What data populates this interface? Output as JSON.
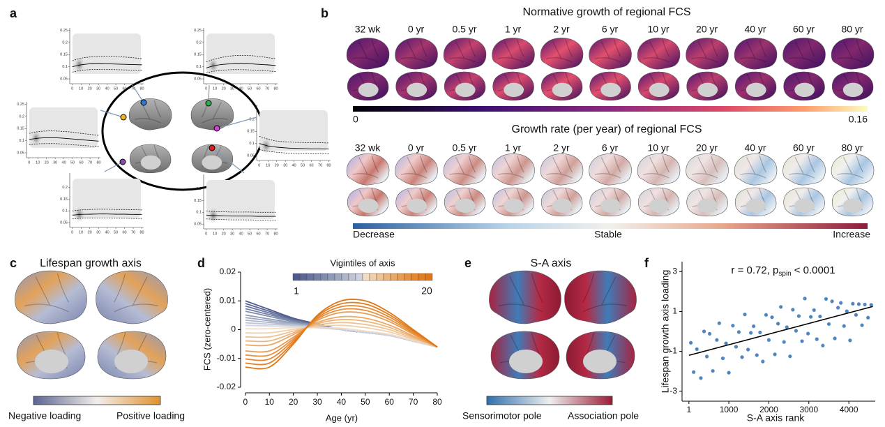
{
  "panels": {
    "a": {
      "label": "a",
      "ylim": [
        0.03,
        0.26
      ],
      "xlim": [
        -3,
        82
      ],
      "xticks": [
        0,
        10,
        20,
        30,
        40,
        50,
        60,
        70,
        80
      ],
      "plots": [
        {
          "yticks": [
            0.05,
            0.1,
            0.15,
            0.2,
            0.25
          ],
          "median": [
            0.1,
            0.108,
            0.112,
            0.113,
            0.112,
            0.111,
            0.11,
            0.109,
            0.108
          ],
          "upper": [
            0.125,
            0.135,
            0.14,
            0.142,
            0.143,
            0.142,
            0.14,
            0.137,
            0.133
          ],
          "lower": [
            0.078,
            0.085,
            0.088,
            0.089,
            0.089,
            0.088,
            0.087,
            0.086,
            0.085
          ]
        },
        {
          "yticks": [
            0.05,
            0.1,
            0.15,
            0.2,
            0.25
          ],
          "median": [
            0.095,
            0.105,
            0.11,
            0.112,
            0.113,
            0.112,
            0.11,
            0.108,
            0.105
          ],
          "upper": [
            0.12,
            0.132,
            0.14,
            0.145,
            0.147,
            0.146,
            0.143,
            0.138,
            0.133
          ],
          "lower": [
            0.075,
            0.082,
            0.086,
            0.088,
            0.088,
            0.087,
            0.085,
            0.083,
            0.08
          ]
        },
        {
          "yticks": [
            0.05,
            0.1,
            0.15,
            0.2,
            0.25
          ],
          "median": [
            0.105,
            0.11,
            0.112,
            0.112,
            0.11,
            0.107,
            0.104,
            0.101,
            0.098
          ],
          "upper": [
            0.13,
            0.137,
            0.14,
            0.14,
            0.138,
            0.135,
            0.13,
            0.126,
            0.122
          ],
          "lower": [
            0.083,
            0.087,
            0.088,
            0.088,
            0.086,
            0.083,
            0.081,
            0.078,
            0.076
          ]
        },
        {
          "yticks": [
            0.05,
            0.1,
            0.15,
            0.2
          ],
          "median": [
            0.1,
            0.09,
            0.085,
            0.082,
            0.08,
            0.079,
            0.078,
            0.078,
            0.077
          ],
          "upper": [
            0.13,
            0.118,
            0.11,
            0.107,
            0.105,
            0.104,
            0.103,
            0.103,
            0.102
          ],
          "lower": [
            0.075,
            0.068,
            0.064,
            0.061,
            0.06,
            0.059,
            0.058,
            0.058,
            0.057
          ]
        },
        {
          "yticks": [
            0.05,
            0.1,
            0.15,
            0.2
          ],
          "median": [
            0.082,
            0.085,
            0.086,
            0.087,
            0.087,
            0.086,
            0.086,
            0.085,
            0.085
          ],
          "upper": [
            0.1,
            0.104,
            0.106,
            0.107,
            0.107,
            0.106,
            0.106,
            0.105,
            0.104
          ],
          "lower": [
            0.066,
            0.069,
            0.07,
            0.07,
            0.07,
            0.069,
            0.069,
            0.068,
            0.068
          ]
        },
        {
          "yticks": [
            0.05,
            0.1,
            0.15,
            0.2
          ],
          "median": [
            0.088,
            0.086,
            0.085,
            0.084,
            0.084,
            0.084,
            0.083,
            0.083,
            0.083
          ],
          "upper": [
            0.105,
            0.103,
            0.102,
            0.101,
            0.101,
            0.101,
            0.1,
            0.1,
            0.1
          ],
          "lower": [
            0.072,
            0.07,
            0.069,
            0.068,
            0.068,
            0.068,
            0.067,
            0.067,
            0.067
          ]
        }
      ]
    },
    "b": {
      "label": "b",
      "title_top": "Normative growth of regional FCS",
      "title_bottom": "Growth rate (per year) of regional FCS",
      "ages": [
        "32 wk",
        "0 yr",
        "0.5 yr",
        "1 yr",
        "2 yr",
        "6 yr",
        "10 yr",
        "20 yr",
        "40 yr",
        "60 yr",
        "80 yr"
      ],
      "colorbar_top": {
        "min": "0",
        "max": "0.16"
      },
      "colorbar_bottom": {
        "left": "Decrease",
        "middle": "Stable",
        "right": "Increase"
      }
    },
    "c": {
      "label": "c",
      "title": "Lifespan growth axis",
      "colorbar": {
        "left": "Negative loading",
        "right": "Positive loading"
      }
    },
    "d": {
      "label": "d",
      "type": "line",
      "y_label": "FCS (zero-centered)",
      "x_label": "Age (yr)",
      "legend_title": "Vigintiles of axis",
      "legend_labels": [
        "1",
        "20"
      ],
      "x": [
        0,
        10,
        20,
        30,
        40,
        50,
        60,
        70,
        80
      ],
      "xlim": [
        -2,
        80
      ],
      "xticks": [
        0,
        10,
        20,
        30,
        40,
        50,
        60,
        70,
        80
      ],
      "ylim": [
        -0.02,
        0.02
      ],
      "yticks": [
        -0.02,
        -0.01,
        0,
        0.01,
        0.02
      ],
      "series": [
        {
          "color": "#4e5a8c",
          "values": [
            0.01,
            0.007,
            0.004,
            0.002,
            0,
            -0.001,
            -0.002,
            -0.004,
            -0.006
          ]
        },
        {
          "color": "#5a6694",
          "values": [
            0.0091,
            0.0064,
            0.0037,
            0.0019,
            0,
            -0.001,
            -0.002,
            -0.004,
            -0.006
          ]
        },
        {
          "color": "#67739c",
          "values": [
            0.0082,
            0.0058,
            0.0034,
            0.0017,
            0,
            -0.001,
            -0.002,
            -0.004,
            -0.006
          ]
        },
        {
          "color": "#7480a5",
          "values": [
            0.0073,
            0.0052,
            0.0031,
            0.0016,
            0,
            -0.001,
            -0.002,
            -0.004,
            -0.006
          ]
        },
        {
          "color": "#828dae",
          "values": [
            0.0064,
            0.0046,
            0.0028,
            0.0014,
            0,
            -0.001,
            -0.002,
            -0.004,
            -0.006
          ]
        },
        {
          "color": "#909bb8",
          "values": [
            0.0051,
            0.0037,
            0.0024,
            0.0012,
            0,
            -0.001,
            -0.002,
            -0.004,
            -0.006
          ]
        },
        {
          "color": "#9fa8c1",
          "values": [
            0.0042,
            0.0031,
            0.0021,
            0.001,
            0,
            -0.001,
            -0.002,
            -0.004,
            -0.006
          ]
        },
        {
          "color": "#aeb6cb",
          "values": [
            0.0033,
            0.0025,
            0.0018,
            0.0009,
            0,
            -0.001,
            -0.002,
            -0.004,
            -0.006
          ]
        },
        {
          "color": "#bec4d5",
          "values": [
            0.0024,
            0.0019,
            0.0015,
            0.0007,
            0,
            -0.001,
            -0.002,
            -0.004,
            -0.006
          ]
        },
        {
          "color": "#ced2df",
          "values": [
            0.0015,
            0.0013,
            0.0012,
            0.0006,
            0,
            -0.001,
            -0.002,
            -0.004,
            -0.006
          ]
        },
        {
          "color": "#f2dcc4",
          "values": [
            0.0003,
            0.0003,
            0.0007,
            0.0007,
            0.0005,
            -0.0005,
            -0.0016,
            -0.0038,
            -0.006
          ]
        },
        {
          "color": "#f0cfab",
          "values": [
            -0.0011,
            -0.0011,
            0.0001,
            0.0012,
            0.0015,
            0.0007,
            -0.0008,
            -0.0034,
            -0.006
          ]
        },
        {
          "color": "#eec293",
          "values": [
            -0.0025,
            -0.0025,
            -0.0005,
            0.0016,
            0.0025,
            0.0018,
            0,
            -0.003,
            -0.006
          ]
        },
        {
          "color": "#ecb57c",
          "values": [
            -0.0039,
            -0.0039,
            -0.0011,
            0.0021,
            0.0035,
            0.0029,
            0.0008,
            -0.0026,
            -0.006
          ]
        },
        {
          "color": "#eaa866",
          "values": [
            -0.0053,
            -0.0053,
            -0.0017,
            0.0025,
            0.0045,
            0.004,
            0.0016,
            -0.0022,
            -0.006
          ]
        },
        {
          "color": "#e89c52",
          "values": [
            -0.0074,
            -0.0074,
            -0.0026,
            0.0032,
            0.006,
            0.0056,
            0.0028,
            -0.0016,
            -0.006
          ]
        },
        {
          "color": "#e6913f",
          "values": [
            -0.0088,
            -0.0088,
            -0.0032,
            0.0037,
            0.007,
            0.0067,
            0.0036,
            -0.0012,
            -0.006
          ]
        },
        {
          "color": "#e4882f",
          "values": [
            -0.0102,
            -0.0102,
            -0.0038,
            0.0041,
            0.008,
            0.0078,
            0.0044,
            -0.0008,
            -0.006
          ]
        },
        {
          "color": "#e27f22",
          "values": [
            -0.0116,
            -0.0116,
            -0.0044,
            0.0046,
            0.009,
            0.0089,
            0.0052,
            -0.0004,
            -0.006
          ]
        },
        {
          "color": "#e07716",
          "values": [
            -0.013,
            -0.013,
            -0.005,
            0.005,
            0.01,
            0.01,
            0.006,
            0,
            -0.006
          ]
        }
      ]
    },
    "e": {
      "label": "e",
      "title": "S-A axis",
      "colorbar": {
        "left": "Sensorimotor pole",
        "right": "Association pole"
      }
    },
    "f": {
      "label": "f",
      "type": "scatter",
      "y_label": "Lifespan growth axis loading",
      "x_label": "S-A axis rank",
      "annotation": {
        "main": "r = 0.72, p",
        "sub": "spin",
        "rest": "< 0.0001"
      },
      "color": "#4f86c0",
      "xlim": [
        -170,
        4660
      ],
      "xticks": [
        1,
        1000,
        2000,
        3000,
        4000
      ],
      "ylim": [
        -3.5,
        3.5
      ],
      "yticks": [
        -3,
        -1,
        1,
        3
      ],
      "x": [
        50,
        120,
        200,
        300,
        380,
        450,
        520,
        600,
        700,
        760,
        850,
        930,
        1000,
        1100,
        1180,
        1250,
        1330,
        1400,
        1480,
        1550,
        1620,
        1700,
        1780,
        1850,
        1930,
        2000,
        2080,
        2150,
        2230,
        2300,
        2380,
        2450,
        2530,
        2600,
        2680,
        2750,
        2830,
        2900,
        2980,
        3050,
        3130,
        3200,
        3280,
        3350,
        3430,
        3500,
        3580,
        3650,
        3730,
        3800,
        3880,
        3950,
        4030,
        4100,
        4180,
        4250,
        4330,
        4400,
        4480,
        4560
      ],
      "y": [
        -0.57,
        -2.04,
        -0.89,
        -2.34,
        0.0,
        -1.26,
        -0.12,
        -1.98,
        -0.43,
        0.41,
        -1.35,
        -0.6,
        -2.07,
        0.29,
        -0.77,
        -0.03,
        -1.29,
        0.85,
        -0.91,
        -0.07,
        0.26,
        -1.19,
        -0.05,
        -1.51,
        0.83,
        -0.43,
        0.71,
        -1.15,
        0.39,
        1.23,
        -0.53,
        0.21,
        -1.25,
        1.09,
        0.03,
        0.77,
        -0.49,
        1.65,
        -0.11,
        0.73,
        1.07,
        -0.39,
        0.75,
        -0.71,
        1.63,
        0.37,
        1.51,
        -0.35,
        1.19,
        1.43,
        0.27,
        1.01,
        -0.45,
        1.39,
        0.83,
        1.37,
        0.31,
        1.35,
        0.69,
        1.33
      ],
      "fit": {
        "x": [
          1,
          4600
        ],
        "y": [
          -1.2,
          1.25
        ]
      }
    }
  }
}
